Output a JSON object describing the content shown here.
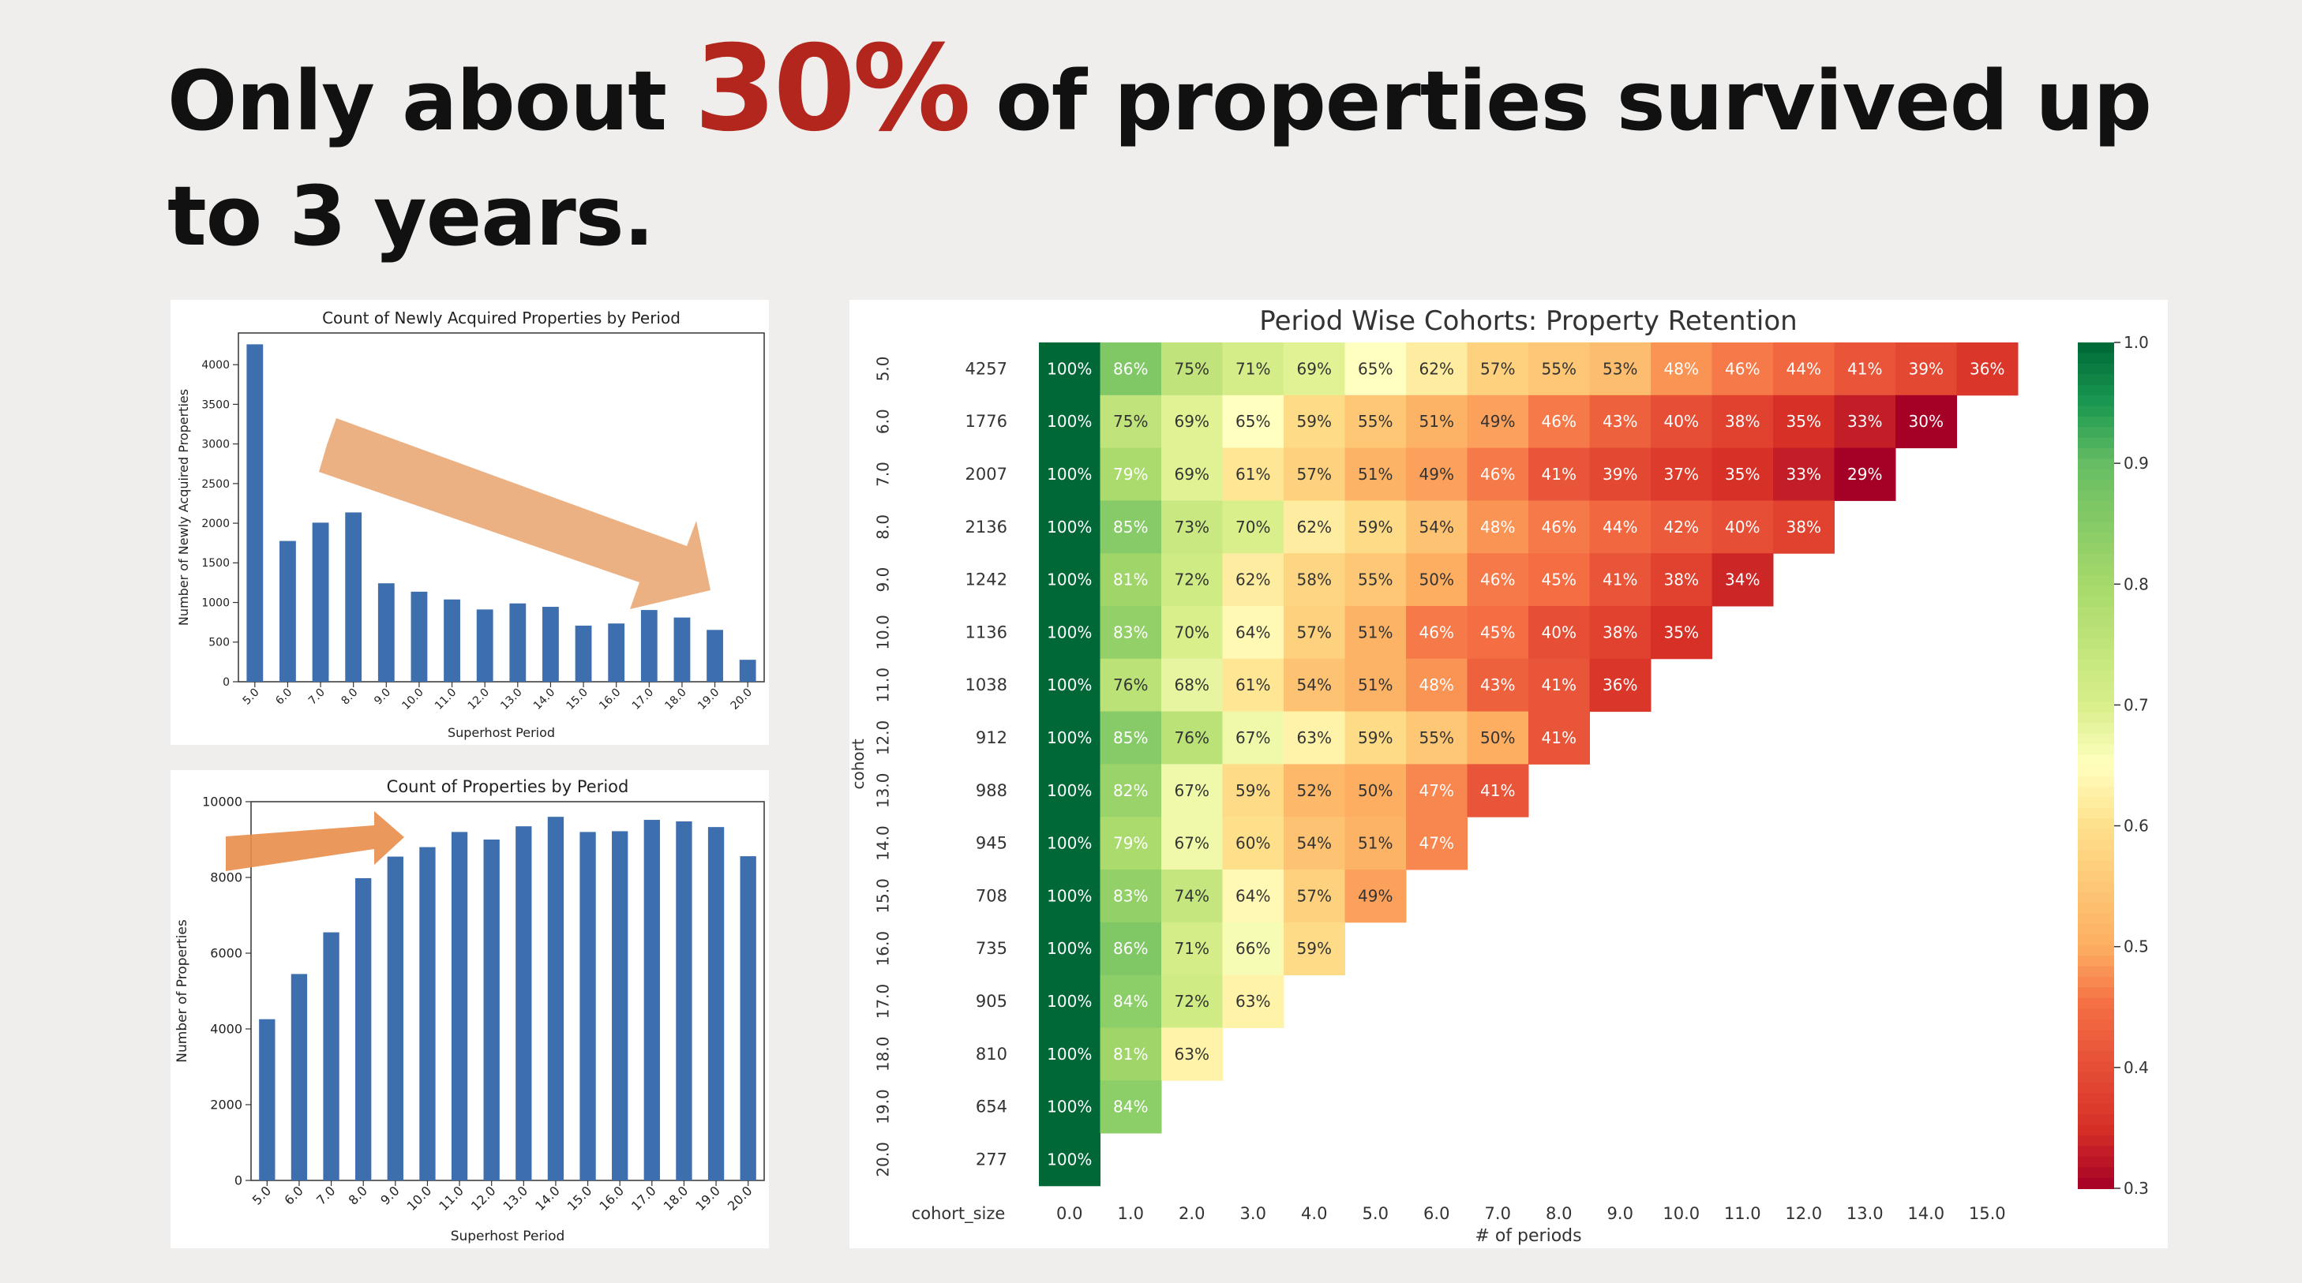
{
  "headline": {
    "part1": "Only about ",
    "highlight": "30%",
    "part2": " of properties survived up to 3 years.",
    "highlight_color": "#b3261e"
  },
  "chart_data": [
    {
      "type": "bar",
      "title": "Count of Newly Acquired Properties by Period",
      "xlabel": "Superhost Period",
      "ylabel": "Number of Newly Acquired Properties",
      "categories": [
        "5.0",
        "6.0",
        "7.0",
        "8.0",
        "9.0",
        "10.0",
        "11.0",
        "12.0",
        "13.0",
        "14.0",
        "15.0",
        "16.0",
        "17.0",
        "18.0",
        "19.0",
        "20.0"
      ],
      "values": [
        4257,
        1776,
        2007,
        2136,
        1242,
        1136,
        1038,
        912,
        988,
        945,
        708,
        735,
        905,
        810,
        654,
        277
      ],
      "ylim": [
        0,
        4400
      ],
      "yticks": [
        0,
        500,
        1000,
        1500,
        2000,
        2500,
        3000,
        3500,
        4000
      ],
      "bar_color": "#3d6fae",
      "annotation": "down-arrow",
      "annotation_color": "#eaa876"
    },
    {
      "type": "bar",
      "title": "Count of Properties by Period",
      "xlabel": "Superhost Period",
      "ylabel": "Number of Properties",
      "categories": [
        "5.0",
        "6.0",
        "7.0",
        "8.0",
        "9.0",
        "10.0",
        "11.0",
        "12.0",
        "13.0",
        "14.0",
        "15.0",
        "16.0",
        "17.0",
        "18.0",
        "19.0",
        "20.0"
      ],
      "values": [
        4257,
        5450,
        6550,
        7980,
        8550,
        8800,
        9200,
        9000,
        9350,
        9600,
        9200,
        9220,
        9520,
        9480,
        9330,
        8560
      ],
      "ylim": [
        0,
        10000
      ],
      "yticks": [
        0,
        2000,
        4000,
        6000,
        8000,
        10000
      ],
      "bar_color": "#3d6fae",
      "annotation": "up-arrow",
      "annotation_color": "#e88d4a"
    },
    {
      "type": "heatmap",
      "title": "Period Wise Cohorts: Property Retention",
      "xlabel": "# of periods",
      "ylabel": "cohort",
      "row_labels": [
        "5.0",
        "6.0",
        "7.0",
        "8.0",
        "9.0",
        "10.0",
        "11.0",
        "12.0",
        "13.0",
        "14.0",
        "15.0",
        "16.0",
        "17.0",
        "18.0",
        "19.0",
        "20.0"
      ],
      "cohort_size_label": "cohort_size",
      "cohort_sizes": [
        4257,
        1776,
        2007,
        2136,
        1242,
        1136,
        1038,
        912,
        988,
        945,
        708,
        735,
        905,
        810,
        654,
        277
      ],
      "col_labels": [
        "0.0",
        "1.0",
        "2.0",
        "3.0",
        "4.0",
        "5.0",
        "6.0",
        "7.0",
        "8.0",
        "9.0",
        "10.0",
        "11.0",
        "12.0",
        "13.0",
        "14.0",
        "15.0"
      ],
      "values": [
        [
          100,
          86,
          75,
          71,
          69,
          65,
          62,
          57,
          55,
          53,
          48,
          46,
          44,
          41,
          39,
          36
        ],
        [
          100,
          75,
          69,
          65,
          59,
          55,
          51,
          49,
          46,
          43,
          40,
          38,
          35,
          33,
          30
        ],
        [
          100,
          79,
          69,
          61,
          57,
          51,
          49,
          46,
          41,
          39,
          37,
          35,
          33,
          29
        ],
        [
          100,
          85,
          73,
          70,
          62,
          59,
          54,
          48,
          46,
          44,
          42,
          40,
          38
        ],
        [
          100,
          81,
          72,
          62,
          58,
          55,
          50,
          46,
          45,
          41,
          38,
          34
        ],
        [
          100,
          83,
          70,
          64,
          57,
          51,
          46,
          45,
          40,
          38,
          35
        ],
        [
          100,
          76,
          68,
          61,
          54,
          51,
          48,
          43,
          41,
          36
        ],
        [
          100,
          85,
          76,
          67,
          63,
          59,
          55,
          50,
          41
        ],
        [
          100,
          82,
          67,
          59,
          52,
          50,
          47,
          41
        ],
        [
          100,
          79,
          67,
          60,
          54,
          51,
          47
        ],
        [
          100,
          83,
          74,
          64,
          57,
          49
        ],
        [
          100,
          86,
          71,
          66,
          59
        ],
        [
          100,
          84,
          72,
          63
        ],
        [
          100,
          81,
          63
        ],
        [
          100,
          84
        ],
        [
          100
        ]
      ],
      "value_suffix": "%",
      "colormap": "RdYlGn",
      "vmin": 0.3,
      "vmax": 1.0,
      "colorbar_ticks": [
        "0.3",
        "0.4",
        "0.5",
        "0.6",
        "0.7",
        "0.8",
        "0.9",
        "1.0"
      ]
    }
  ]
}
